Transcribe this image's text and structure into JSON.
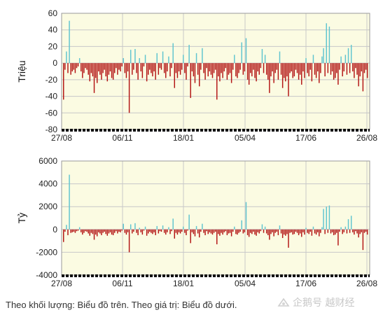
{
  "chart_data": [
    {
      "type": "bar",
      "ylabel": "Triệu",
      "ylim": [
        -80,
        60
      ],
      "yticks": [
        60,
        40,
        20,
        0,
        -20,
        -40,
        -60,
        -80
      ],
      "xticks": [
        "27/08",
        "06/11",
        "18/01",
        "05/04",
        "17/06",
        "26/08"
      ],
      "grid": true,
      "colors": {
        "positive": "#5fc4cf",
        "negative": "#b31414",
        "background": "#fbfbe2",
        "grid": "#c8c8c8"
      },
      "values": [
        -44,
        -8,
        14,
        -12,
        51,
        -14,
        -10,
        -8,
        -12,
        -6,
        -4,
        6,
        -10,
        -18,
        -12,
        -6,
        -8,
        -14,
        -22,
        -12,
        -16,
        -36,
        -18,
        -24,
        -10,
        -14,
        -20,
        -12,
        -8,
        -16,
        -22,
        -14,
        -10,
        -18,
        -20,
        -12,
        -6,
        -14,
        -8,
        -10,
        -4,
        6,
        -12,
        -18,
        -10,
        -60,
        16,
        -14,
        -8,
        17,
        -12,
        -20,
        6,
        -10,
        -18,
        -4,
        10,
        -22,
        -14,
        -8,
        -12,
        -16,
        -10,
        -20,
        12,
        -14,
        -6,
        -8,
        14,
        -12,
        -18,
        -10,
        8,
        -16,
        -6,
        24,
        -30,
        -12,
        -18,
        -10,
        -14,
        -8,
        10,
        -12,
        -20,
        -4,
        22,
        -42,
        -10,
        -16,
        -24,
        12,
        -14,
        -28,
        -8,
        18,
        -12,
        -20,
        -6,
        -16,
        -10,
        -14,
        -18,
        -12,
        -8,
        -44,
        -16,
        -22,
        -12,
        -18,
        -10,
        -6,
        -20,
        -14,
        -12,
        -24,
        -8,
        10,
        -16,
        -18,
        -12,
        -8,
        25,
        -14,
        -10,
        30,
        -20,
        -26,
        -12,
        -16,
        -8,
        -18,
        -22,
        -10,
        -14,
        -6,
        17,
        -12,
        10,
        -14,
        -20,
        -36,
        -16,
        -10,
        -24,
        -12,
        -8,
        -20,
        14,
        -14,
        -30,
        -18,
        -22,
        -16,
        -40,
        -12,
        -10,
        -18,
        -16,
        -8,
        -12,
        -20,
        -14,
        -26,
        -10,
        -18,
        6,
        -12,
        -16,
        -8,
        -22,
        10,
        -14,
        -18,
        -10,
        -24,
        -12,
        8,
        18,
        -16,
        48,
        -12,
        44,
        -14,
        -10,
        -20,
        -18,
        -12,
        -26,
        -8,
        8,
        -16,
        -10,
        10,
        -14,
        18,
        -12,
        22,
        -10,
        -18,
        -6,
        -14,
        -28,
        -16,
        -10,
        -34,
        -12,
        -8,
        -18
      ]
    },
    {
      "type": "bar",
      "ylabel": "Tỷ",
      "ylim": [
        -4000,
        6000
      ],
      "yticks": [
        6000,
        4000,
        2000,
        0,
        -2000,
        -4000
      ],
      "xticks": [
        "27/08",
        "06/11",
        "18/01",
        "05/04",
        "17/06",
        "26/08"
      ],
      "grid": true,
      "colors": {
        "positive": "#5fc4cf",
        "negative": "#b31414",
        "background": "#fbfbe2",
        "grid": "#c8c8c8"
      },
      "values": [
        -1100,
        -200,
        400,
        -500,
        4800,
        -300,
        -250,
        -200,
        -300,
        -150,
        -100,
        200,
        -250,
        -450,
        -300,
        -150,
        -200,
        -350,
        -550,
        -300,
        -400,
        -900,
        -450,
        -600,
        -250,
        -350,
        -500,
        -300,
        -200,
        -400,
        -550,
        -350,
        -250,
        -450,
        -500,
        -300,
        -150,
        -350,
        -200,
        -250,
        -100,
        500,
        -300,
        -450,
        -250,
        -2000,
        450,
        -350,
        -200,
        550,
        -300,
        -500,
        150,
        -250,
        -450,
        -100,
        250,
        -550,
        -350,
        -200,
        -300,
        -400,
        -250,
        -500,
        300,
        -350,
        -150,
        -200,
        350,
        -300,
        -450,
        -250,
        200,
        -400,
        -150,
        950,
        -800,
        -300,
        -450,
        -250,
        -350,
        -200,
        250,
        -300,
        -500,
        -100,
        1300,
        -1200,
        -250,
        -400,
        -600,
        300,
        -350,
        -700,
        -200,
        500,
        -300,
        -500,
        -150,
        -400,
        -250,
        -350,
        -450,
        -300,
        -200,
        -1300,
        -400,
        -550,
        -300,
        -450,
        -250,
        -150,
        -500,
        -350,
        -300,
        -600,
        -200,
        250,
        -400,
        -450,
        -300,
        -200,
        800,
        -350,
        -250,
        2400,
        -500,
        -650,
        -300,
        -400,
        -200,
        -450,
        -550,
        -250,
        -350,
        -150,
        450,
        -300,
        250,
        -350,
        -500,
        -900,
        -400,
        -250,
        -600,
        -300,
        -200,
        -500,
        350,
        -350,
        -750,
        -450,
        -550,
        -400,
        -1600,
        -300,
        -250,
        -450,
        -400,
        -200,
        -300,
        -500,
        -350,
        -650,
        -250,
        -450,
        150,
        -300,
        -400,
        -200,
        -550,
        250,
        -350,
        -450,
        -250,
        -600,
        -300,
        200,
        1800,
        -400,
        2000,
        -300,
        2100,
        -350,
        -250,
        -500,
        -450,
        -300,
        -1400,
        -200,
        200,
        -400,
        -250,
        250,
        -350,
        900,
        -300,
        1200,
        -250,
        -450,
        -150,
        -350,
        -700,
        -400,
        -250,
        -1800,
        -300,
        -200,
        -450
      ]
    }
  ],
  "caption": "Theo khối lượng: Biểu đồ trên. Theo giá trị: Biểu đồ dưới.",
  "watermark": "企鹅号 越财经"
}
